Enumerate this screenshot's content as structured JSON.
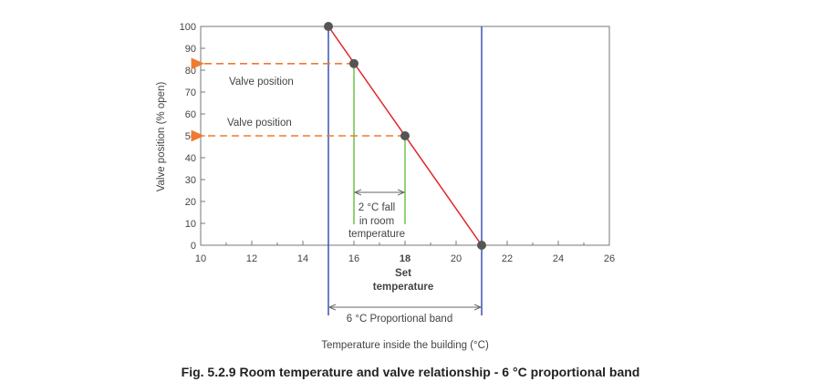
{
  "caption": "Fig. 5.2.9 Room temperature and valve relationship - 6 °C proportional band",
  "colors": {
    "line": "#e0262b",
    "band": "#3a55b4",
    "drop": "#6cc24a",
    "arrow": "#f07a30",
    "point": "#555555",
    "axis": "#777777"
  },
  "chart_data": {
    "type": "line",
    "xlabel": "Temperature inside the building (°C)",
    "ylabel": "Valve position (% open)",
    "xlim": [
      10,
      26
    ],
    "ylim": [
      0,
      100
    ],
    "x_ticks": [
      "10",
      "12",
      "14",
      "16",
      "18",
      "20",
      "22",
      "24",
      "26"
    ],
    "y_ticks": [
      "0",
      "10",
      "20",
      "30",
      "40",
      "50",
      "60",
      "70",
      "80",
      "90",
      "100"
    ],
    "series": [
      {
        "x": [
          15,
          21
        ],
        "y": [
          100,
          0
        ]
      }
    ],
    "points": [
      {
        "x": 15,
        "y": 100
      },
      {
        "x": 16,
        "y": 83
      },
      {
        "x": 18,
        "y": 50
      },
      {
        "x": 21,
        "y": 0
      }
    ],
    "band_lines_x": [
      15,
      21
    ],
    "annotations": {
      "valve_position_upper": "Valve position",
      "valve_position_lower": "Valve position",
      "fall_line1": "2 °C fall",
      "fall_line2": "in room",
      "fall_line3": "temperature",
      "set_label1": "Set",
      "set_label2": "temperature",
      "band_label": "6 °C Proportional band"
    },
    "set_point_x": 18
  }
}
